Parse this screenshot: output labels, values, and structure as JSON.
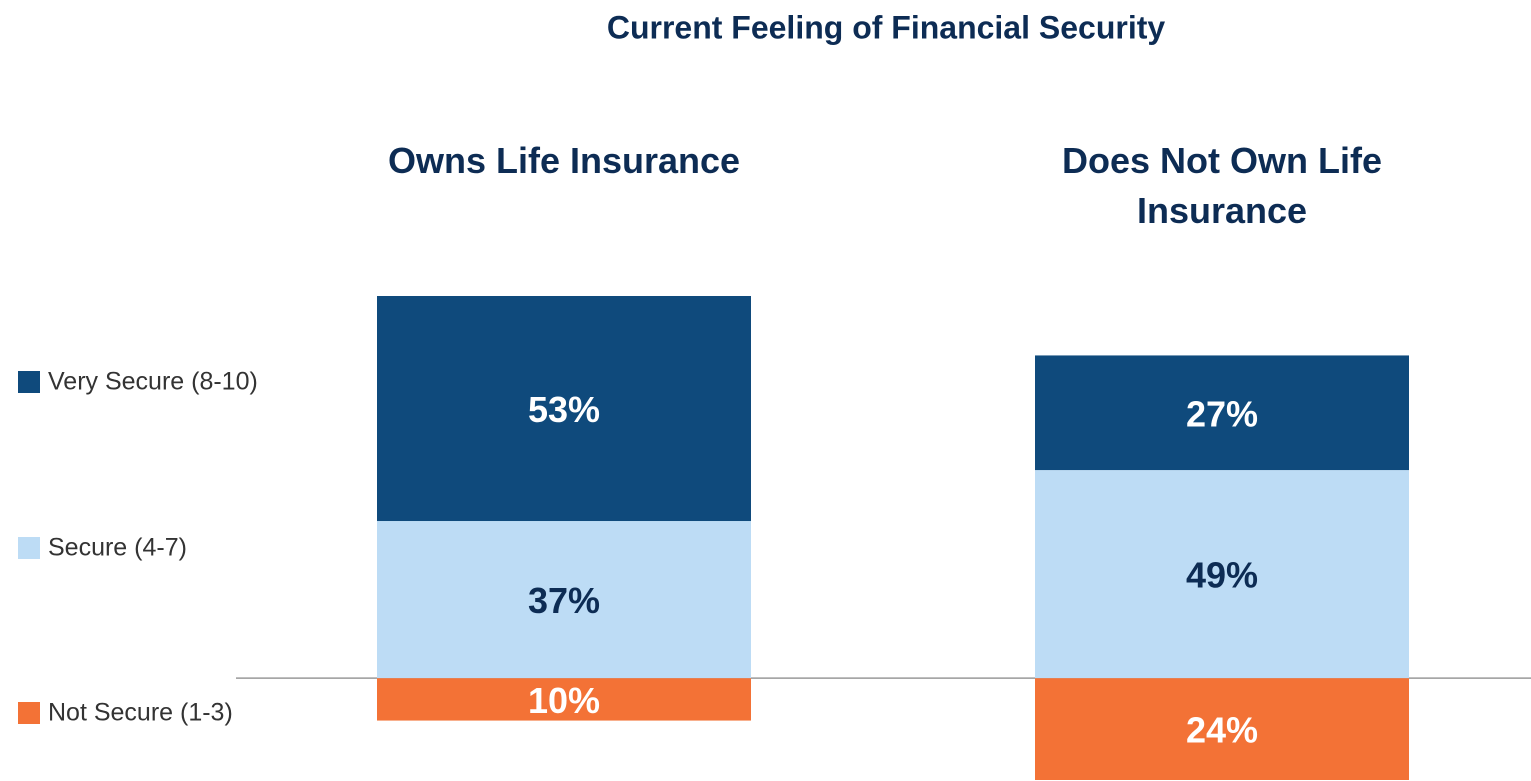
{
  "chart_data": {
    "type": "bar",
    "stacked": true,
    "title": "Current Feeling of Financial Security",
    "categories": [
      "Owns Life Insurance",
      "Does Not Own Life Insurance"
    ],
    "series": [
      {
        "name": "Very Secure (8-10)",
        "color": "#0f4a7c",
        "values": [
          53,
          27
        ],
        "value_labels": [
          "53%",
          "27%"
        ]
      },
      {
        "name": "Secure (4-7)",
        "color": "#bddcf5",
        "values": [
          37,
          49
        ],
        "value_labels": [
          "37%",
          "49%"
        ]
      },
      {
        "name": "Not Secure (1-3)",
        "color": "#f37236",
        "values": [
          -10,
          -24
        ],
        "value_labels": [
          "10%",
          "24%"
        ]
      }
    ],
    "ylim": [
      -24,
      90
    ],
    "legend": "left"
  }
}
